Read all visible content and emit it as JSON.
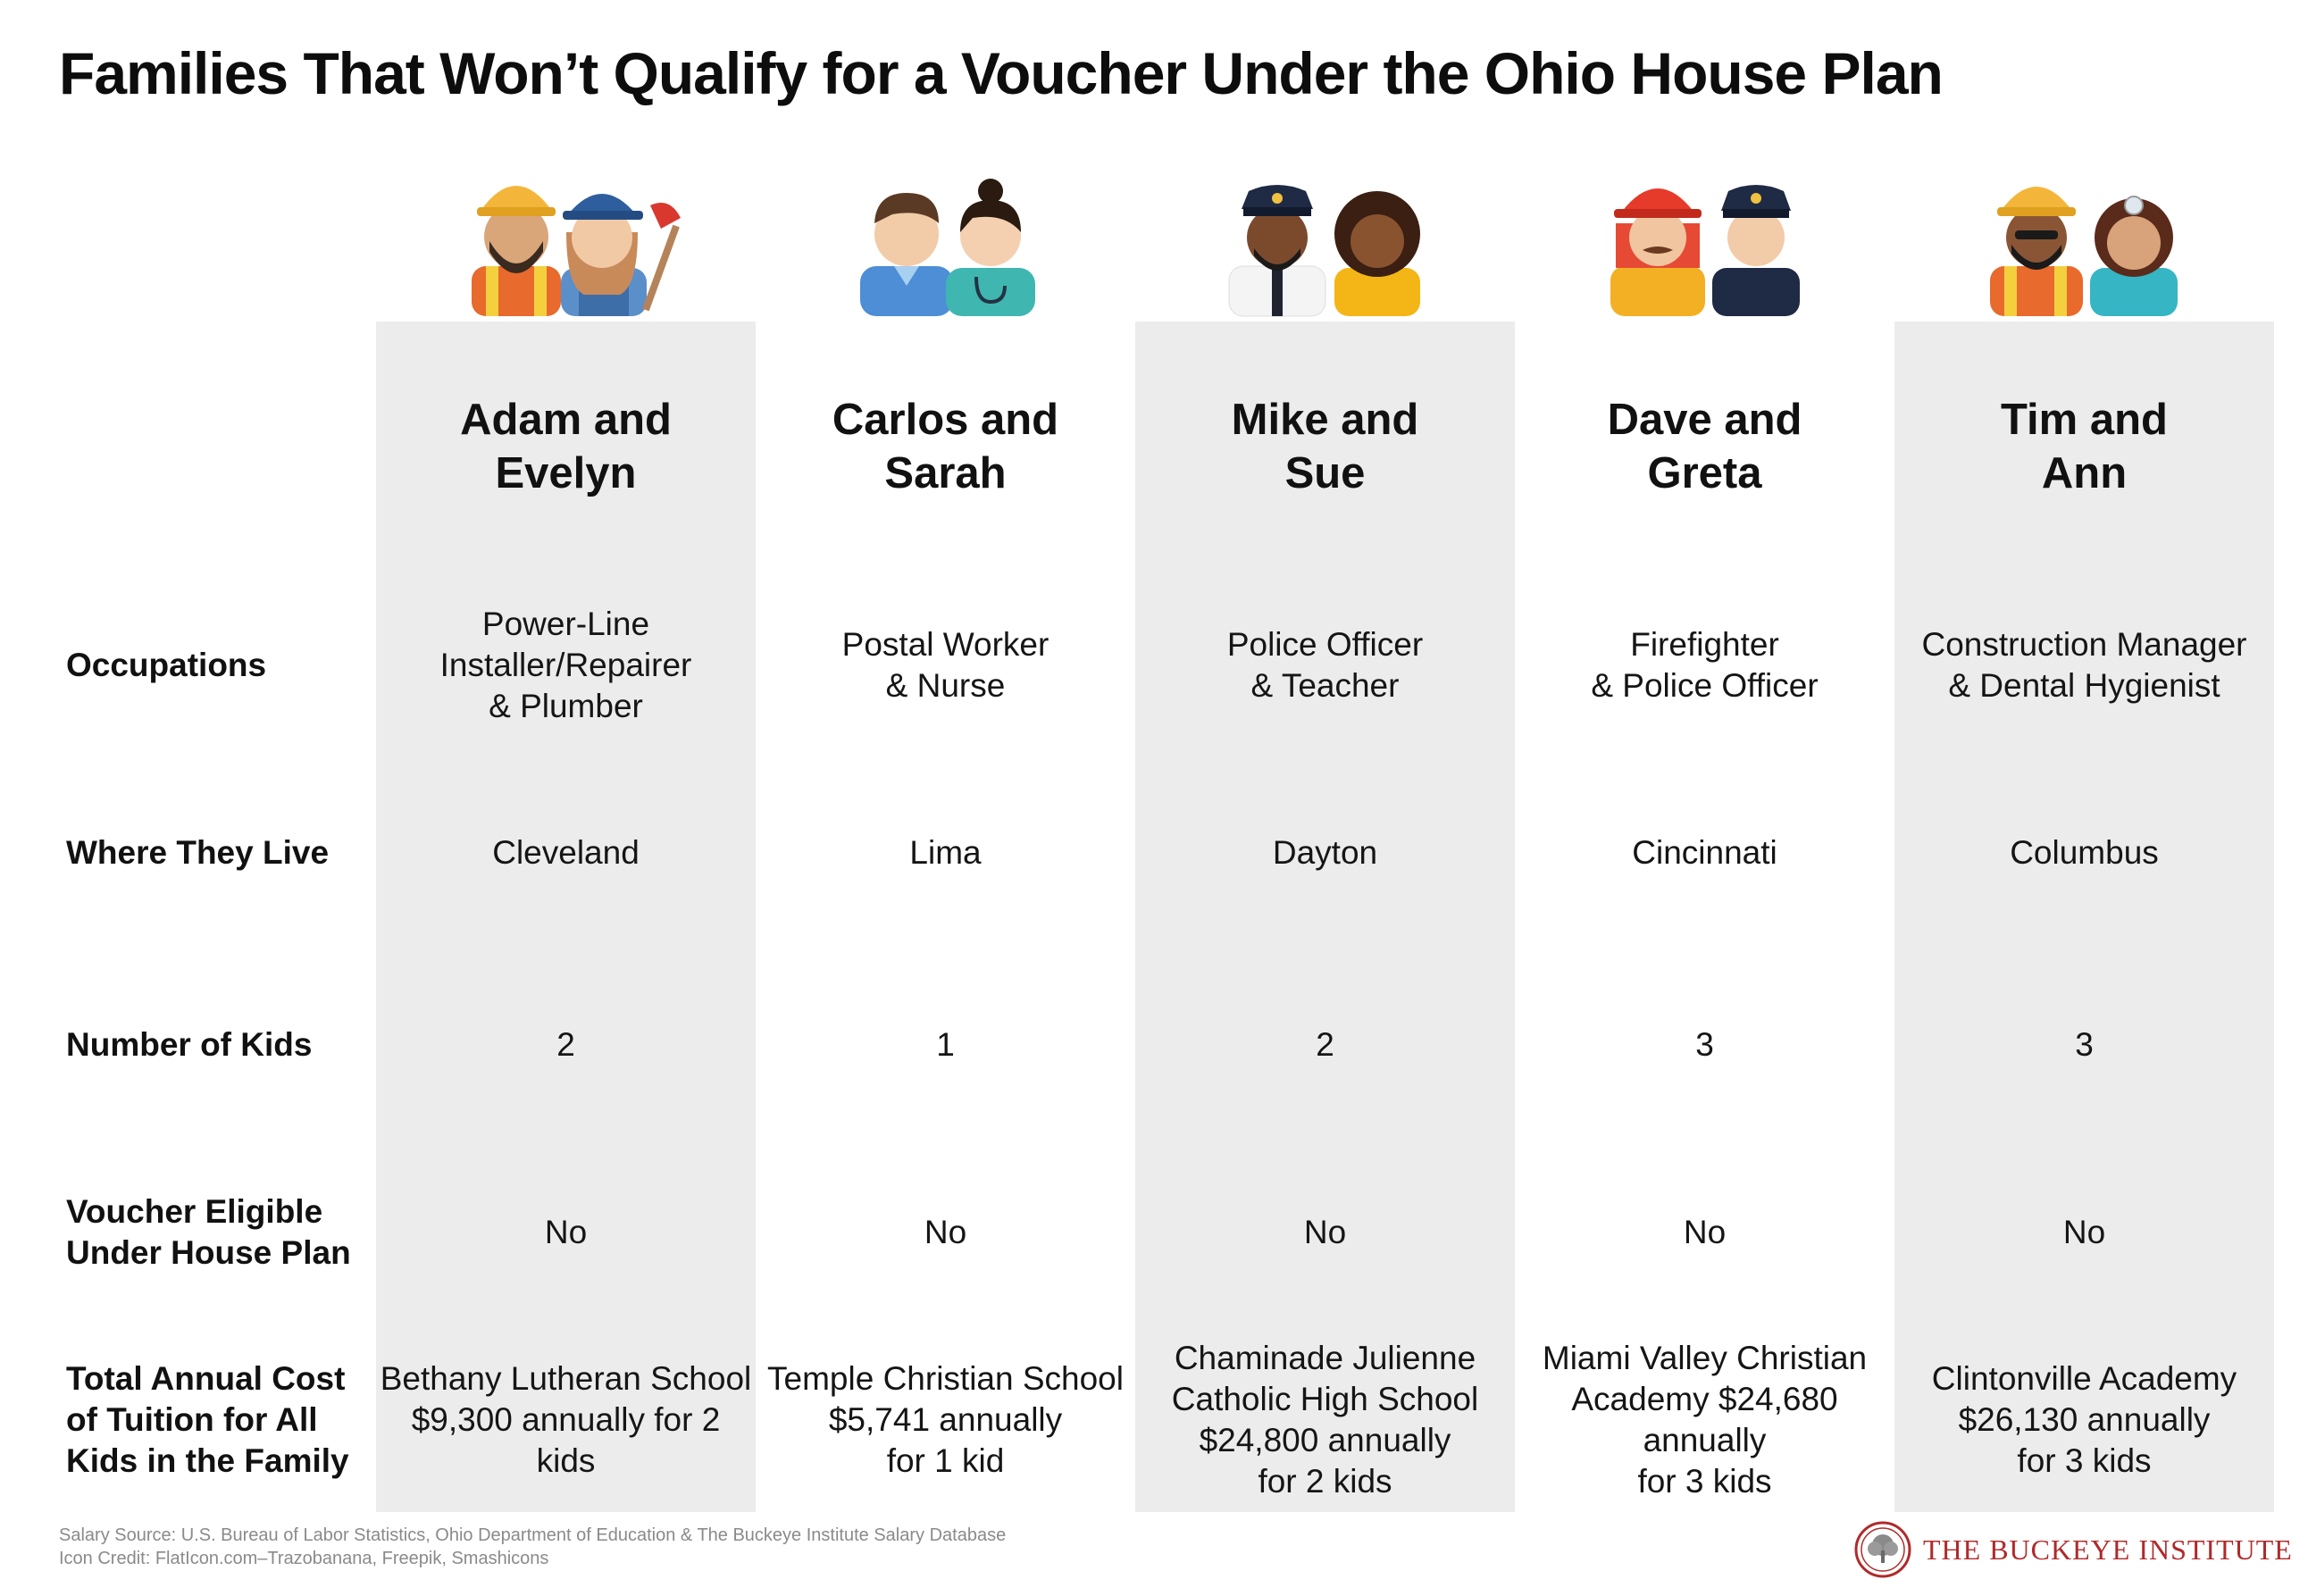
{
  "title": "Families That Won’t Qualify for a Voucher Under the Ohio House Plan",
  "row_labels": {
    "occupations": "Occupations",
    "where": "Where They Live",
    "kids": "Number of Kids",
    "eligible": "Voucher Eligible\nUnder House Plan",
    "tuition": "Total Annual Cost\nof Tuition for All\nKids in the Family"
  },
  "families": [
    {
      "name": "Adam and\nEvelyn",
      "occupations": "Power-Line\nInstaller/Repairer\n& Plumber",
      "where": "Cleveland",
      "kids": "2",
      "eligible": "No",
      "tuition": "Bethany Lutheran School\n$9,300 annually for 2\nkids",
      "icons": [
        "construction-worker-icon",
        "plumber-icon"
      ]
    },
    {
      "name": "Carlos and\nSarah",
      "occupations": "Postal Worker\n& Nurse",
      "where": "Lima",
      "kids": "1",
      "eligible": "No",
      "tuition": "Temple Christian School\n$5,741 annually\nfor 1 kid",
      "icons": [
        "postal-worker-icon",
        "nurse-icon"
      ]
    },
    {
      "name": "Mike and\nSue",
      "occupations": "Police Officer\n& Teacher",
      "where": "Dayton",
      "kids": "2",
      "eligible": "No",
      "tuition": "Chaminade Julienne\nCatholic High School\n$24,800 annually\nfor 2 kids",
      "icons": [
        "police-officer-icon",
        "teacher-icon"
      ]
    },
    {
      "name": "Dave and\nGreta",
      "occupations": "Firefighter\n& Police Officer",
      "where": "Cincinnati",
      "kids": "3",
      "eligible": "No",
      "tuition": "Miami Valley Christian\nAcademy $24,680\nannually\nfor 3 kids",
      "icons": [
        "firefighter-icon",
        "police-officer-icon"
      ]
    },
    {
      "name": "Tim and\nAnn",
      "occupations": "Construction Manager\n& Dental Hygienist",
      "where": "Columbus",
      "kids": "3",
      "eligible": "No",
      "tuition": "Clintonville Academy\n$26,130 annually\nfor 3 kids",
      "icons": [
        "construction-manager-icon",
        "dental-hygienist-icon"
      ]
    }
  ],
  "footer": {
    "salary_source": "Salary Source: U.S. Bureau of Labor Statistics, Ohio Department of Education & The Buckeye Institute Salary Database",
    "icon_credit": "Icon Credit: FlatIcon.com–Trazobanana, Freepik, Smashicons"
  },
  "logo": {
    "text": "THE BUCKEYE INSTITUTE",
    "icon": "buckeye-tree-seal-icon"
  },
  "colors": {
    "shaded_column": "#ececec",
    "logo_red": "#b02a2a",
    "footer_gray": "#8a8a8a"
  }
}
